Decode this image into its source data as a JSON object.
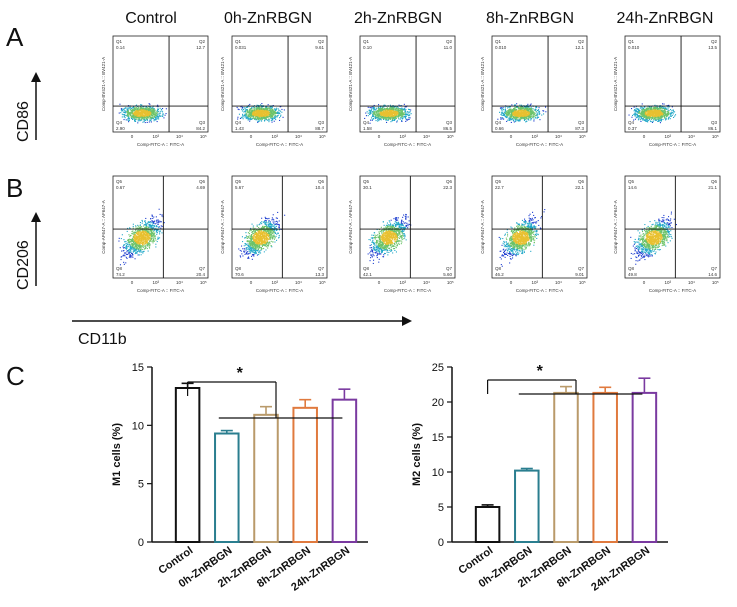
{
  "panels": {
    "a_label": "A",
    "b_label": "B",
    "c_label": "C"
  },
  "groups": [
    "Control",
    "0h-ZnRBGN",
    "2h-ZnRBGN",
    "8h-ZnRBGN",
    "24h-ZnRBGN"
  ],
  "flow": {
    "row_a": {
      "y_marker": "CD86",
      "x_axis_label": "Comp-FITC-A :: FITC-A",
      "y_axis_label": "Comp-BV421-A :: BV421-A",
      "quadrant_names": [
        "Q1",
        "Q2",
        "Q3",
        "Q4"
      ],
      "quadrant_values": [
        [
          "0.14",
          "12.7",
          "84.2",
          "2.90"
        ],
        [
          "0.031",
          "9.61",
          "88.7",
          "1.43"
        ],
        [
          "0.10",
          "11.0",
          "86.5",
          "1.58"
        ],
        [
          "0.010",
          "12.1",
          "87.3",
          "0.66"
        ],
        [
          "0.010",
          "13.5",
          "86.1",
          "0.37"
        ]
      ]
    },
    "row_b": {
      "y_marker": "CD206",
      "x_axis_label": "Comp-FITC-A :: FITC-A",
      "y_axis_label": "Comp-AF647-A :: AF647-A",
      "quadrant_names": [
        "Q5",
        "Q6",
        "Q7",
        "Q8"
      ],
      "quadrant_values": [
        [
          "0.67",
          "4.69",
          "20.4",
          "74.2"
        ],
        [
          "5.67",
          "10.4",
          "13.3",
          "70.6"
        ],
        [
          "30.1",
          "22.3",
          "5.60",
          "42.1"
        ],
        [
          "22.7",
          "22.1",
          "9.01",
          "46.2"
        ],
        [
          "14.6",
          "21.1",
          "14.6",
          "49.8"
        ]
      ]
    },
    "x_marker": "CD11b",
    "tick_labels": [
      "-10³",
      "0",
      "10³",
      "10⁴",
      "10⁵"
    ]
  },
  "significance_mark": "*",
  "chart_data": [
    {
      "type": "bar",
      "categories": [
        "Control",
        "0h-ZnRBGN",
        "2h-ZnRBGN",
        "8h-ZnRBGN",
        "24h-ZnRBGN"
      ],
      "values": [
        13.2,
        9.3,
        10.9,
        11.5,
        12.2
      ],
      "errors": [
        0.4,
        0.25,
        0.7,
        0.7,
        0.9
      ],
      "title": "",
      "xlabel": "",
      "ylabel": "M1 cells (%)",
      "ylim": [
        0,
        15
      ],
      "yticks": [
        0,
        5,
        10,
        15
      ],
      "colors": [
        "#111111",
        "#2a7e8f",
        "#b99a6a",
        "#e07a3e",
        "#7a3aa0"
      ],
      "grid": false
    },
    {
      "type": "bar",
      "categories": [
        "Control",
        "0h-ZnRBGN",
        "2h-ZnRBGN",
        "8h-ZnRBGN",
        "24h-ZnRBGN"
      ],
      "values": [
        5.0,
        10.2,
        21.3,
        21.3,
        21.3
      ],
      "errors": [
        0.3,
        0.3,
        0.9,
        0.8,
        2.1
      ],
      "title": "",
      "xlabel": "",
      "ylabel": "M2 cells (%)",
      "ylim": [
        0,
        25
      ],
      "yticks": [
        0,
        5,
        10,
        15,
        20,
        25
      ],
      "colors": [
        "#111111",
        "#2a7e8f",
        "#b99a6a",
        "#e07a3e",
        "#7a3aa0"
      ],
      "grid": false
    }
  ]
}
